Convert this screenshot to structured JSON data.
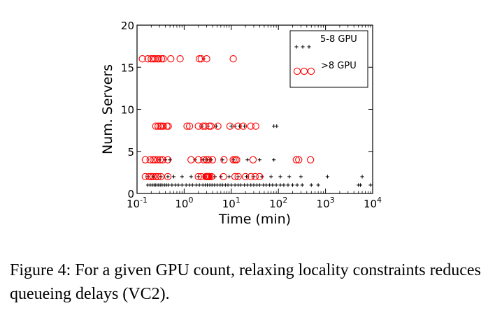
{
  "chart_data": {
    "type": "scatter",
    "xscale": "log",
    "xlabel": "Time (min)",
    "ylabel": "Num. Servers",
    "xlim": [
      0.1,
      10000
    ],
    "ylim": [
      0,
      20
    ],
    "xticks": [
      {
        "value": 0.1,
        "base": "10",
        "exp": "-1"
      },
      {
        "value": 1,
        "base": "10",
        "exp": "0"
      },
      {
        "value": 10,
        "base": "10",
        "exp": "1"
      },
      {
        "value": 100,
        "base": "10",
        "exp": "2"
      },
      {
        "value": 1000,
        "base": "10",
        "exp": "3"
      },
      {
        "value": 10000,
        "base": "10",
        "exp": "4"
      }
    ],
    "yticks": [
      0,
      5,
      10,
      15,
      20
    ],
    "legend_position": "top-right",
    "series": [
      {
        "name": "5-8 GPU",
        "marker": "plus",
        "color": "#000000",
        "points": [
          [
            0.17,
            1
          ],
          [
            0.19,
            1
          ],
          [
            0.21,
            1
          ],
          [
            0.23,
            1
          ],
          [
            0.25,
            1
          ],
          [
            0.28,
            1
          ],
          [
            0.31,
            1
          ],
          [
            0.34,
            1
          ],
          [
            0.38,
            1
          ],
          [
            0.42,
            1
          ],
          [
            0.46,
            1
          ],
          [
            0.55,
            1
          ],
          [
            0.65,
            1
          ],
          [
            0.75,
            1
          ],
          [
            0.9,
            1
          ],
          [
            1.1,
            1
          ],
          [
            1.3,
            1
          ],
          [
            1.5,
            1
          ],
          [
            1.8,
            1
          ],
          [
            2.1,
            1
          ],
          [
            2.5,
            1
          ],
          [
            2.8,
            1
          ],
          [
            3.1,
            1
          ],
          [
            3.5,
            1
          ],
          [
            3.9,
            1
          ],
          [
            4.4,
            1
          ],
          [
            5.0,
            1
          ],
          [
            5.8,
            1
          ],
          [
            6.5,
            1
          ],
          [
            7.5,
            1
          ],
          [
            8.5,
            1
          ],
          [
            10,
            1
          ],
          [
            12,
            1
          ],
          [
            14,
            1
          ],
          [
            16,
            1
          ],
          [
            19,
            1
          ],
          [
            22,
            1
          ],
          [
            26,
            1
          ],
          [
            30,
            1
          ],
          [
            35,
            1
          ],
          [
            40,
            1
          ],
          [
            48,
            1
          ],
          [
            55,
            1
          ],
          [
            65,
            1
          ],
          [
            75,
            1
          ],
          [
            90,
            1
          ],
          [
            110,
            1
          ],
          [
            130,
            1
          ],
          [
            160,
            1
          ],
          [
            200,
            1
          ],
          [
            250,
            1
          ],
          [
            320,
            1
          ],
          [
            500,
            1
          ],
          [
            700,
            1
          ],
          [
            5000,
            1
          ],
          [
            5500,
            1
          ],
          [
            9000,
            1
          ],
          [
            0.17,
            2
          ],
          [
            0.22,
            2
          ],
          [
            0.32,
            2
          ],
          [
            0.45,
            2
          ],
          [
            0.6,
            2
          ],
          [
            0.9,
            2
          ],
          [
            1.4,
            2
          ],
          [
            2.0,
            2
          ],
          [
            2.7,
            2
          ],
          [
            3.6,
            2
          ],
          [
            4.5,
            2
          ],
          [
            6,
            2
          ],
          [
            9,
            2
          ],
          [
            14,
            2
          ],
          [
            21,
            2
          ],
          [
            30,
            2
          ],
          [
            45,
            2
          ],
          [
            70,
            2
          ],
          [
            110,
            2
          ],
          [
            170,
            2
          ],
          [
            300,
            2
          ],
          [
            1100,
            2
          ],
          [
            6000,
            2
          ],
          [
            0.3,
            4
          ],
          [
            0.4,
            4
          ],
          [
            0.5,
            4
          ],
          [
            1.7,
            4
          ],
          [
            2.5,
            4
          ],
          [
            3.1,
            4
          ],
          [
            3.7,
            4
          ],
          [
            6.5,
            4
          ],
          [
            11,
            4
          ],
          [
            22,
            4
          ],
          [
            40,
            4
          ],
          [
            80,
            4
          ],
          [
            2.4,
            8
          ],
          [
            3.2,
            8
          ],
          [
            4.8,
            8
          ],
          [
            10,
            8
          ],
          [
            12,
            8
          ],
          [
            15,
            8
          ],
          [
            19,
            8
          ],
          [
            80,
            8
          ],
          [
            92,
            8
          ],
          [
            2.6,
            16
          ]
        ]
      },
      {
        "name": ">8 GPU",
        "marker": "circle",
        "color": "#ff0000",
        "points": [
          [
            0.13,
            16
          ],
          [
            0.17,
            16
          ],
          [
            0.2,
            16
          ],
          [
            0.22,
            16
          ],
          [
            0.24,
            16
          ],
          [
            0.27,
            16
          ],
          [
            0.29,
            16
          ],
          [
            0.33,
            16
          ],
          [
            0.36,
            16
          ],
          [
            0.52,
            16
          ],
          [
            0.82,
            16
          ],
          [
            2.1,
            16
          ],
          [
            2.3,
            16
          ],
          [
            3.0,
            16
          ],
          [
            11,
            16
          ],
          [
            0.25,
            8
          ],
          [
            0.28,
            8
          ],
          [
            0.31,
            8
          ],
          [
            0.33,
            8
          ],
          [
            0.36,
            8
          ],
          [
            0.43,
            8
          ],
          [
            0.46,
            8
          ],
          [
            1.15,
            8
          ],
          [
            1.3,
            8
          ],
          [
            2.0,
            8
          ],
          [
            2.5,
            8
          ],
          [
            2.8,
            8
          ],
          [
            3.4,
            8
          ],
          [
            3.7,
            8
          ],
          [
            5.2,
            8
          ],
          [
            9.4,
            8
          ],
          [
            14,
            8
          ],
          [
            18,
            8
          ],
          [
            26,
            8
          ],
          [
            33,
            8
          ],
          [
            0.15,
            4
          ],
          [
            0.19,
            4
          ],
          [
            0.22,
            4
          ],
          [
            0.24,
            4
          ],
          [
            0.27,
            4
          ],
          [
            0.31,
            4
          ],
          [
            0.35,
            4
          ],
          [
            0.45,
            4
          ],
          [
            1.4,
            4
          ],
          [
            2.0,
            4
          ],
          [
            2.6,
            4
          ],
          [
            3.0,
            4
          ],
          [
            3.3,
            4
          ],
          [
            4.0,
            4
          ],
          [
            7.0,
            4
          ],
          [
            11,
            4
          ],
          [
            12,
            4
          ],
          [
            13,
            4
          ],
          [
            29,
            4
          ],
          [
            240,
            4
          ],
          [
            270,
            4
          ],
          [
            480,
            4
          ],
          [
            0.15,
            2
          ],
          [
            0.18,
            2
          ],
          [
            0.2,
            2
          ],
          [
            0.22,
            2
          ],
          [
            0.25,
            2
          ],
          [
            0.28,
            2
          ],
          [
            0.32,
            2
          ],
          [
            0.45,
            2
          ],
          [
            2.0,
            2
          ],
          [
            2.3,
            2
          ],
          [
            2.9,
            2
          ],
          [
            3.0,
            2
          ],
          [
            3.1,
            2
          ],
          [
            3.2,
            2
          ],
          [
            3.3,
            2
          ],
          [
            3.5,
            2
          ],
          [
            3.8,
            2
          ],
          [
            6.8,
            2
          ],
          [
            12,
            2
          ],
          [
            14,
            2
          ],
          [
            20,
            2
          ],
          [
            26,
            2
          ],
          [
            32,
            2
          ],
          [
            40,
            2
          ]
        ]
      }
    ]
  },
  "caption": "Figure 4:  For a given GPU count, relaxing locality constraints reduces queueing delays (VC2)."
}
